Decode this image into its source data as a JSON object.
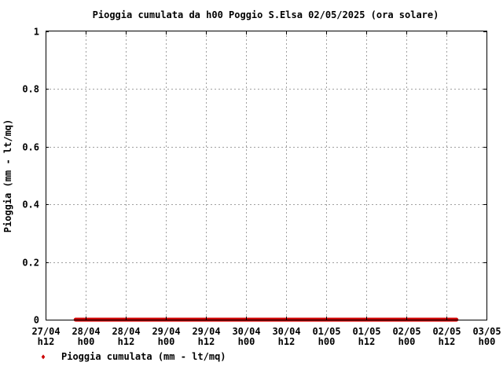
{
  "chart_data": {
    "type": "line",
    "title": "Pioggia cumulata da h00 Poggio S.Elsa 02/05/2025 (ora solare)",
    "xlabel": "",
    "ylabel": "Pioggia (mm - lt/mq)",
    "ylim": [
      0,
      1
    ],
    "yticks": [
      "0",
      "0.2",
      "0.4",
      "0.6",
      "0.8",
      "1"
    ],
    "xticks": [
      {
        "date": "27/04",
        "hour": "h12"
      },
      {
        "date": "28/04",
        "hour": "h00"
      },
      {
        "date": "28/04",
        "hour": "h12"
      },
      {
        "date": "29/04",
        "hour": "h00"
      },
      {
        "date": "29/04",
        "hour": "h12"
      },
      {
        "date": "30/04",
        "hour": "h00"
      },
      {
        "date": "30/04",
        "hour": "h12"
      },
      {
        "date": "01/05",
        "hour": "h00"
      },
      {
        "date": "01/05",
        "hour": "h12"
      },
      {
        "date": "02/05",
        "hour": "h00"
      },
      {
        "date": "02/05",
        "hour": "h12"
      },
      {
        "date": "03/05",
        "hour": "h00"
      }
    ],
    "grid": true,
    "legend_position": "bottom-left",
    "series": [
      {
        "name": "Pioggia cumulata (mm - lt/mq)",
        "color": "#cc0000",
        "x_start": "27/04 h21",
        "x_end": "02/05 h15",
        "value": 0
      }
    ]
  }
}
